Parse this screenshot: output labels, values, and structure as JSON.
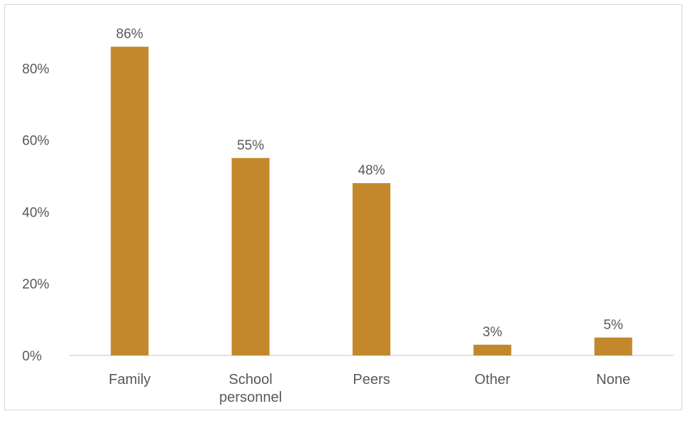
{
  "chart_data": {
    "type": "bar",
    "categories": [
      "Family",
      "School personnel",
      "Peers",
      "Other",
      "None"
    ],
    "category_lines": [
      [
        "Family"
      ],
      [
        "School",
        "personnel"
      ],
      [
        "Peers"
      ],
      [
        "Other"
      ],
      [
        "None"
      ]
    ],
    "values": [
      86,
      55,
      48,
      3,
      5
    ],
    "data_labels": [
      "86%",
      "55%",
      "48%",
      "3%",
      "5%"
    ],
    "y_ticks": [
      0,
      20,
      40,
      60,
      80
    ],
    "y_tick_labels": [
      "0%",
      "20%",
      "40%",
      "60%",
      "80%"
    ],
    "ylim": [
      0,
      90
    ],
    "grid": false,
    "legend": "none",
    "bar_color": "#c4882c",
    "axis_color": "#d9d9d9",
    "text_color": "#595959"
  }
}
